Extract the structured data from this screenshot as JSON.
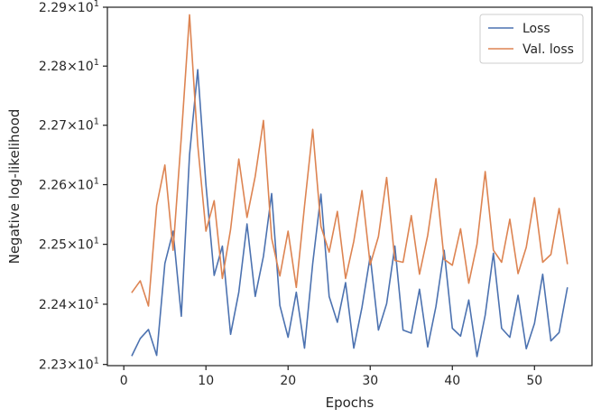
{
  "chart_data": {
    "type": "line",
    "xlabel": "Epochs",
    "ylabel": "Negative log-likelihood",
    "xlim": [
      -2,
      57
    ],
    "ylim": [
      22.298,
      22.9
    ],
    "y_scale": "log",
    "grid": false,
    "legend_position": "top-right",
    "xticks": [
      0,
      10,
      20,
      30,
      40,
      50
    ],
    "yticks": [
      22.3,
      22.4,
      22.5,
      22.6,
      22.7,
      22.8,
      22.9
    ],
    "ytick_labels": [
      {
        "mant": "2.23",
        "exp": "1"
      },
      {
        "mant": "2.24",
        "exp": "1"
      },
      {
        "mant": "2.25",
        "exp": "1"
      },
      {
        "mant": "2.26",
        "exp": "1"
      },
      {
        "mant": "2.27",
        "exp": "1"
      },
      {
        "mant": "2.28",
        "exp": "1"
      },
      {
        "mant": "2.29",
        "exp": "1"
      }
    ],
    "x": [
      1,
      2,
      3,
      4,
      5,
      6,
      7,
      8,
      9,
      10,
      11,
      12,
      13,
      14,
      15,
      16,
      17,
      18,
      19,
      20,
      21,
      22,
      23,
      24,
      25,
      26,
      27,
      28,
      29,
      30,
      31,
      32,
      33,
      34,
      35,
      36,
      37,
      38,
      39,
      40,
      41,
      42,
      43,
      44,
      45,
      46,
      47,
      48,
      49,
      50,
      51,
      52,
      53,
      54
    ],
    "series": [
      {
        "name": "Loss",
        "color": "#4c72b0",
        "values": [
          22.315,
          22.343,
          22.358,
          22.315,
          22.468,
          22.522,
          22.38,
          22.65,
          22.794,
          22.6,
          22.448,
          22.497,
          22.35,
          22.42,
          22.534,
          22.413,
          22.48,
          22.585,
          22.398,
          22.345,
          22.42,
          22.327,
          22.468,
          22.584,
          22.413,
          22.37,
          22.436,
          22.327,
          22.395,
          22.48,
          22.357,
          22.401,
          22.497,
          22.357,
          22.352,
          22.425,
          22.329,
          22.396,
          22.49,
          22.36,
          22.347,
          22.407,
          22.313,
          22.382,
          22.485,
          22.36,
          22.345,
          22.415,
          22.326,
          22.368,
          22.45,
          22.339,
          22.353,
          22.427
        ]
      },
      {
        "name": "Val. loss",
        "color": "#dd8452",
        "values": [
          22.42,
          22.439,
          22.397,
          22.565,
          22.633,
          22.49,
          22.68,
          22.887,
          22.667,
          22.522,
          22.573,
          22.443,
          22.525,
          22.643,
          22.545,
          22.614,
          22.708,
          22.51,
          22.447,
          22.522,
          22.428,
          22.564,
          22.693,
          22.53,
          22.487,
          22.555,
          22.443,
          22.505,
          22.59,
          22.466,
          22.513,
          22.612,
          22.473,
          22.47,
          22.548,
          22.45,
          22.515,
          22.61,
          22.475,
          22.465,
          22.526,
          22.435,
          22.5,
          22.622,
          22.49,
          22.47,
          22.542,
          22.451,
          22.495,
          22.578,
          22.47,
          22.483,
          22.56,
          22.468
        ]
      }
    ]
  }
}
